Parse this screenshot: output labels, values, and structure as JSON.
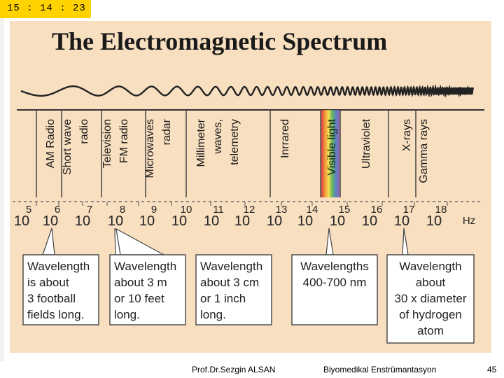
{
  "clock": "15 : 14 : 23",
  "title": "The Electromagnetic Spectrum",
  "bands": [
    {
      "lines": [
        "AM Radio"
      ]
    },
    {
      "lines": [
        "Short wave",
        "radio"
      ]
    },
    {
      "lines": [
        "Television",
        "FM radio"
      ]
    },
    {
      "lines": [
        "Microwaves",
        "radar"
      ]
    },
    {
      "lines": [
        "Millimeter",
        "waves,",
        "telemetry"
      ]
    },
    {
      "lines": [
        "Inrrared"
      ]
    },
    {
      "lines": [
        "Visible light"
      ]
    },
    {
      "lines": [
        "Ultraviolet"
      ]
    },
    {
      "lines": [
        "X-rays",
        "Gamma rays"
      ]
    }
  ],
  "base": "10",
  "exponents": [
    "5",
    "6",
    "7",
    "8",
    "9",
    "10",
    "11",
    "12",
    "13",
    "14",
    "15",
    "16",
    "17",
    "18"
  ],
  "unit": "Hz",
  "callouts": [
    {
      "lines": [
        "Wavelength",
        "is about",
        "3 football",
        "fields long."
      ]
    },
    {
      "lines": [
        "Wavelength",
        "about 3 m",
        "or 10 feet",
        "long."
      ]
    },
    {
      "lines": [
        "Wavelength",
        "about 3 cm",
        "or 1 inch",
        "long."
      ]
    },
    {
      "lines": [
        "Wavelengths",
        "400-700 nm"
      ]
    },
    {
      "lines": [
        "Wavelength",
        "about",
        "30 x diameter",
        "of hydrogen",
        "atom"
      ]
    }
  ],
  "footer": {
    "author": "Prof.Dr.Sezgin ALSAN",
    "course": "Biyomedikal Enstrümantasyon",
    "page": "45"
  }
}
